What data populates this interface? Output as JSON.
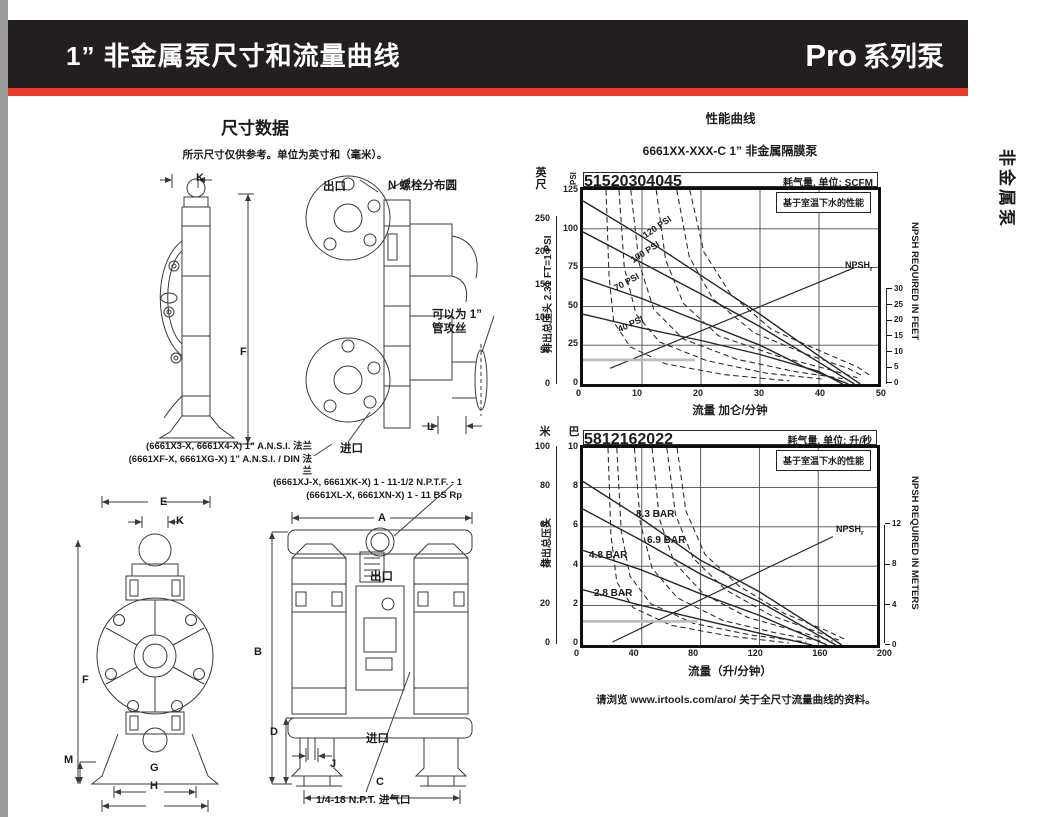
{
  "page": {
    "header": {
      "title": "1” 非金属泵尺寸和流量曲线",
      "series_brand": "Pro",
      "series_suffix": "系列泵"
    },
    "side_tab": "非金属泵",
    "accent_red": "#ea3b2e",
    "header_bg": "#231f20"
  },
  "dimensions": {
    "title": "尺寸数据",
    "note": "所示尺寸仅供参考。单位为英寸和（毫米）。",
    "outlet_label": "出口",
    "inlet_label": "进口",
    "bolt_circle_label": "N 螺栓分布圆",
    "tap_note_line1": "可以为 1”",
    "tap_note_line2": "管攻丝",
    "air_inlet_label": "1/4-18 N.P.T. 进气口",
    "flange_notes": [
      "(6661X3-X, 6661X4-X) 1” A.N.S.I. 法兰",
      "(6661XF-X, 6661XG-X) 1” A.N.S.I. / DIN 法兰"
    ],
    "port_notes": [
      "(6661XJ-X, 6661XK-X) 1 - 11-1/2 N.P.T.F. - 1",
      "(6661XL-X, 6661XN-X) 1 - 11 BS Rp"
    ],
    "dims": {
      "A": "A",
      "B": "B",
      "C": "C",
      "D": "D",
      "E": "E",
      "F": "F",
      "G": "G",
      "H": "H",
      "J": "J",
      "K": "K",
      "L": "L",
      "M": "M"
    }
  },
  "performance": {
    "title": "性能曲线",
    "footer_prefix": "请浏览",
    "footer_url": "www.irtools.com/aro/",
    "footer_suffix": "关于全尺寸流量曲线的资料。"
  },
  "chart_data": [
    {
      "type": "line",
      "title": "6661XX-XXX-C 1” 非金属隔膜泵",
      "note": "基于室温下水的性能",
      "xlabel": "流量 加仑/分钟",
      "xlim": [
        0,
        50
      ],
      "x_ticks": [
        "0",
        "10",
        "20",
        "30",
        "40",
        "50"
      ],
      "ylim": [
        0,
        125
      ],
      "grid": true,
      "y_psi": {
        "unit": "PSI",
        "ticks": [
          "125",
          "100",
          "75",
          "50",
          "25",
          "0"
        ]
      },
      "y_feet": {
        "unit": "英尺",
        "axis_label": "排出总压头 2.31 FT=1 PSI",
        "ticks": [
          "250",
          "200",
          "150",
          "100",
          "50",
          "0"
        ]
      },
      "air_axis": {
        "label": "耗气量, 单位: SCFM",
        "ticks": [
          "5",
          "15",
          "20",
          "30",
          "40",
          "45"
        ]
      },
      "npsh_axis": {
        "label": "NPSH REQUIRED IN FEET",
        "range": [
          0,
          30
        ],
        "ticks": [
          "30",
          "25",
          "20",
          "15",
          "10",
          "5",
          "0"
        ]
      },
      "npsh_label": "NPSH",
      "npsh_sub": "r",
      "series": [
        {
          "name": "120 PSI",
          "style": "",
          "x": [
            0,
            10,
            20,
            30,
            40,
            47
          ],
          "y": [
            118,
            95,
            70,
            45,
            18,
            0
          ]
        },
        {
          "name": "100 PSI",
          "style": "",
          "x": [
            0,
            10,
            20,
            30,
            40,
            46
          ],
          "y": [
            98,
            78,
            58,
            37,
            14,
            0
          ]
        },
        {
          "name": "70 PSI",
          "style": "",
          "x": [
            0,
            10,
            20,
            30,
            38,
            45
          ],
          "y": [
            68,
            55,
            40,
            25,
            10,
            0
          ]
        },
        {
          "name": "40 PSI",
          "style": "",
          "x": [
            0,
            10,
            20,
            30,
            40,
            44
          ],
          "y": [
            45,
            36,
            28,
            19,
            8,
            0
          ]
        },
        {
          "name": "NPSHr",
          "style": "thin",
          "x": [
            4.6,
            46
          ],
          "y": [
            5,
            37
          ],
          "render_ylim": [
            0,
            61.7
          ]
        },
        {
          "name": "air 5 SCFM",
          "style": "dashed",
          "x": [
            3.9,
            4.4,
            5.2,
            8,
            14,
            24,
            35
          ],
          "y": [
            125,
            70,
            40,
            24,
            13,
            6,
            2
          ]
        },
        {
          "name": "air 15 SCFM",
          "style": "dashed",
          "x": [
            6.1,
            7,
            9,
            13,
            21,
            31,
            41
          ],
          "y": [
            125,
            75,
            45,
            27,
            15,
            7,
            3
          ]
        },
        {
          "name": "air 20 SCFM",
          "style": "dashed",
          "x": [
            8.1,
            9.5,
            12,
            17,
            26,
            36,
            44
          ],
          "y": [
            125,
            78,
            48,
            29,
            16,
            8,
            3.5
          ]
        },
        {
          "name": "air 30 SCFM",
          "style": "dashed",
          "x": [
            12.4,
            14,
            17,
            23,
            33,
            42,
            46.5
          ],
          "y": [
            125,
            80,
            52,
            31,
            18,
            9,
            4
          ]
        },
        {
          "name": "air 40 SCFM",
          "style": "dashed",
          "x": [
            15.9,
            18,
            22,
            29,
            38,
            45,
            47.5
          ],
          "y": [
            125,
            82,
            55,
            33,
            19,
            10,
            5
          ]
        },
        {
          "name": "air 45 SCFM",
          "style": "dashed",
          "x": [
            18.1,
            20.5,
            25,
            32,
            41,
            46.5,
            48.5
          ],
          "y": [
            125,
            85,
            58,
            35,
            20,
            11,
            6
          ]
        },
        {
          "name": "guide line",
          "style": "guide",
          "x": [
            0,
            19
          ],
          "y": [
            15.5,
            15.5
          ]
        }
      ]
    },
    {
      "type": "line",
      "note": "基于室温下水的性能",
      "xlabel": "流量（升/分钟）",
      "xlim": [
        0,
        200
      ],
      "x_ticks": [
        "0",
        "40",
        "80",
        "120",
        "160",
        "200"
      ],
      "ylim": [
        0,
        10
      ],
      "grid": true,
      "y_bar": {
        "unit": "巴",
        "ticks": [
          "10",
          "8",
          "6",
          "4",
          "2",
          "0"
        ]
      },
      "y_m": {
        "unit": "米",
        "axis_label": "排出总压头",
        "ticks": [
          "100",
          "80",
          "60",
          "40",
          "20",
          "0"
        ]
      },
      "air_axis": {
        "label": "耗气量, 单位: 升/秒",
        "ticks": [
          "5",
          "8",
          "12",
          "16",
          "20",
          "22"
        ]
      },
      "npsh_axis": {
        "label": "NPSH REQUIRED IN METERS",
        "range": [
          0,
          12
        ],
        "ticks": [
          "12",
          "8",
          "4",
          "0"
        ]
      },
      "npsh_label": "NPSH",
      "npsh_sub": "r",
      "series": [
        {
          "name": "8.3 BAR",
          "style": "",
          "x": [
            0,
            40,
            80,
            120,
            160,
            176
          ],
          "y": [
            8.3,
            6.4,
            4.3,
            2.7,
            0.8,
            0
          ]
        },
        {
          "name": "6.9 BAR",
          "style": "",
          "x": [
            0,
            40,
            80,
            120,
            160,
            172
          ],
          "y": [
            6.9,
            5.3,
            3.6,
            2.2,
            0.5,
            0
          ]
        },
        {
          "name": "4.8 BAR",
          "style": "",
          "x": [
            0,
            40,
            80,
            120,
            160,
            166
          ],
          "y": [
            4.8,
            3.8,
            2.6,
            1.5,
            0.2,
            0
          ]
        },
        {
          "name": "2.8 BAR",
          "style": "",
          "x": [
            0,
            40,
            80,
            120,
            156
          ],
          "y": [
            2.8,
            2.0,
            1.3,
            0.6,
            0
          ]
        },
        {
          "name": "NPSHr",
          "style": "thin",
          "x": [
            20,
            170
          ],
          "y": [
            0.3,
            11
          ],
          "render_ylim": [
            0,
            20
          ]
        },
        {
          "name": "air 5 l/s",
          "style": "dashed",
          "x": [
            17,
            19,
            23,
            34,
            60,
            100,
            140
          ],
          "y": [
            10,
            5.6,
            3.2,
            1.9,
            1.0,
            0.45,
            0.1
          ]
        },
        {
          "name": "air 8 l/s",
          "style": "dashed",
          "x": [
            23,
            26,
            32,
            46,
            75,
            115,
            152
          ],
          "y": [
            10,
            5.8,
            3.5,
            2.1,
            1.1,
            0.5,
            0.15
          ]
        },
        {
          "name": "air 12 l/s",
          "style": "dashed",
          "x": [
            35,
            39,
            47,
            64,
            95,
            132,
            162
          ],
          "y": [
            10,
            6.2,
            3.9,
            2.4,
            1.25,
            0.6,
            0.2
          ]
        },
        {
          "name": "air 16 l/s",
          "style": "dashed",
          "x": [
            47,
            52,
            62,
            82,
            112,
            148,
            170
          ],
          "y": [
            10,
            6.4,
            4.2,
            2.6,
            1.4,
            0.65,
            0.2
          ]
        },
        {
          "name": "air 20 l/s",
          "style": "dashed",
          "x": [
            57,
            63,
            75,
            97,
            128,
            158,
            174
          ],
          "y": [
            10,
            6.6,
            4.4,
            2.8,
            1.5,
            0.7,
            0.25
          ]
        },
        {
          "name": "air 22 l/s",
          "style": "dashed",
          "x": [
            64,
            70,
            83,
            106,
            137,
            165,
            178
          ],
          "y": [
            10,
            6.8,
            4.6,
            3.0,
            1.6,
            0.75,
            0.3
          ]
        },
        {
          "name": "guide line",
          "style": "guide",
          "x": [
            0,
            78
          ],
          "y": [
            1.2,
            1.2
          ]
        }
      ]
    }
  ]
}
